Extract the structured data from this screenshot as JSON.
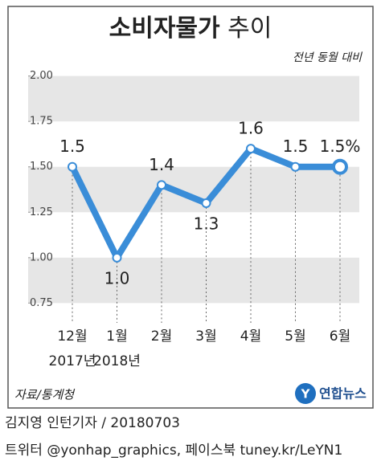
{
  "chart_data": {
    "type": "line",
    "title_main": "소비자물가",
    "title_rest": "추이",
    "subtitle": "전년 동월 대비",
    "categories": [
      "12월",
      "1월",
      "2월",
      "3월",
      "4월",
      "5월",
      "6월"
    ],
    "category_years": [
      "2017년",
      "2018년",
      null,
      null,
      null,
      null,
      null
    ],
    "values": [
      1.5,
      1.0,
      1.4,
      1.3,
      1.6,
      1.5,
      1.5
    ],
    "value_labels": [
      "1.5",
      "1.0",
      "1.4",
      "1.3",
      "1.6",
      "1.5",
      "1.5%"
    ],
    "color": "#3a8dd8",
    "ylim": [
      0.65,
      2.1
    ],
    "yticks": [
      {
        "value": 0.75,
        "label": "0.75"
      },
      {
        "value": 1,
        "label": "1.00"
      },
      {
        "value": 1.25,
        "label": "1.25"
      },
      {
        "value": 1.5,
        "label": "1.50"
      },
      {
        "value": 1.75,
        "label": "1.75"
      },
      {
        "value": 2,
        "label": "2.00"
      }
    ],
    "source": "자료/통계청",
    "logo": "연합뉴스"
  },
  "credits": [
    "김지영 인턴기자 / 20180703",
    "트위터 @yonhap_graphics, 페이스북 tuney.kr/LeYN1"
  ]
}
